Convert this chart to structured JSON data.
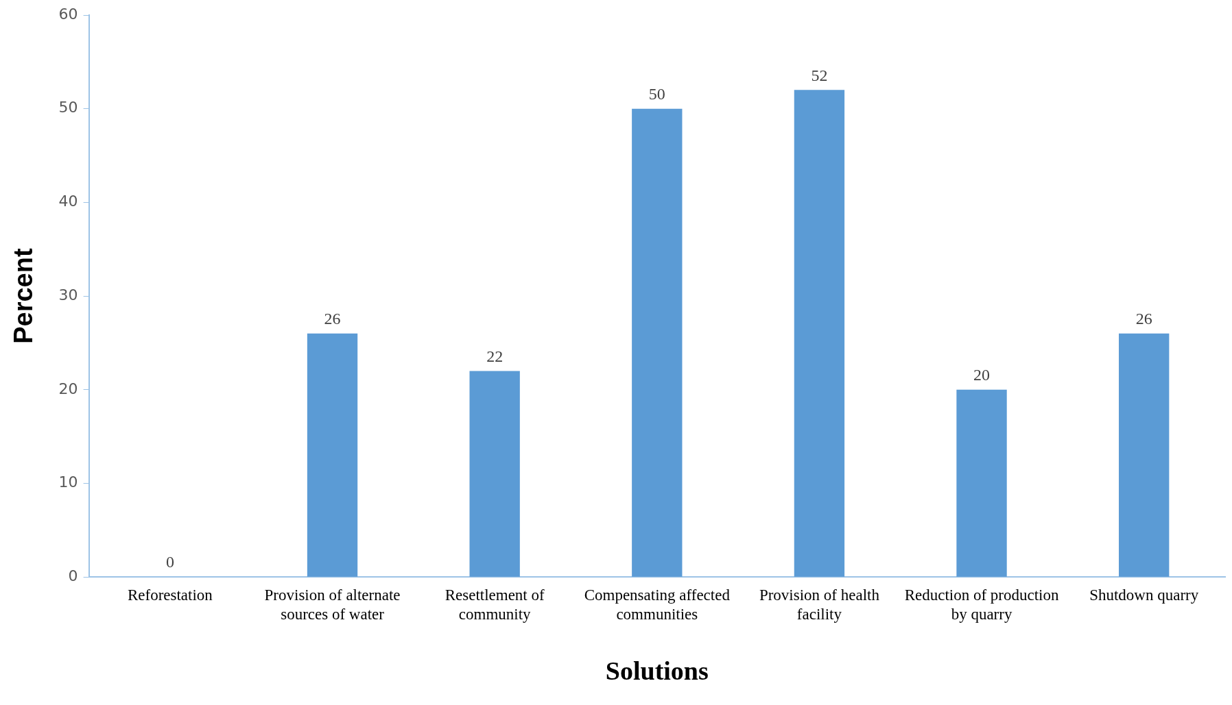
{
  "chart_data": {
    "type": "bar",
    "xlabel": "Solutions",
    "ylabel": "Percent",
    "categories": [
      "Reforestation",
      "Provision of alternate sources of water",
      "Resettlement of community",
      "Compensating affected communities",
      "Provision of health facility",
      "Reduction of production by quarry",
      "Shutdown quarry"
    ],
    "values": [
      0,
      26,
      22,
      50,
      52,
      20,
      26
    ],
    "color": "#5b9bd5",
    "ylim": [
      0,
      60
    ],
    "yticks": [
      0,
      10,
      20,
      30,
      40,
      50,
      60
    ],
    "grid": false,
    "data_labels": true
  }
}
